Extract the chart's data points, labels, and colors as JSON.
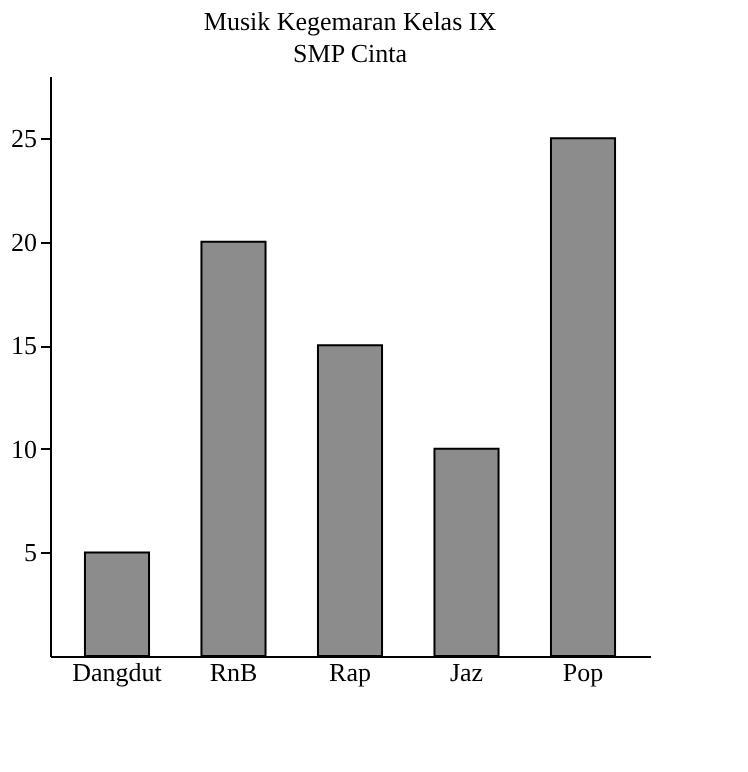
{
  "chart_data": {
    "type": "bar",
    "title": "Musik Kegemaran Kelas IX",
    "subtitle": "SMP Cinta",
    "categories": [
      "Dangdut",
      "RnB",
      "Rap",
      "Jaz",
      "Pop"
    ],
    "values": [
      5,
      20,
      15,
      10,
      25
    ],
    "color": "#8c8c8c",
    "ylim": [
      0,
      28
    ],
    "yticks": [
      5,
      10,
      15,
      20,
      25
    ],
    "grid": false
  }
}
